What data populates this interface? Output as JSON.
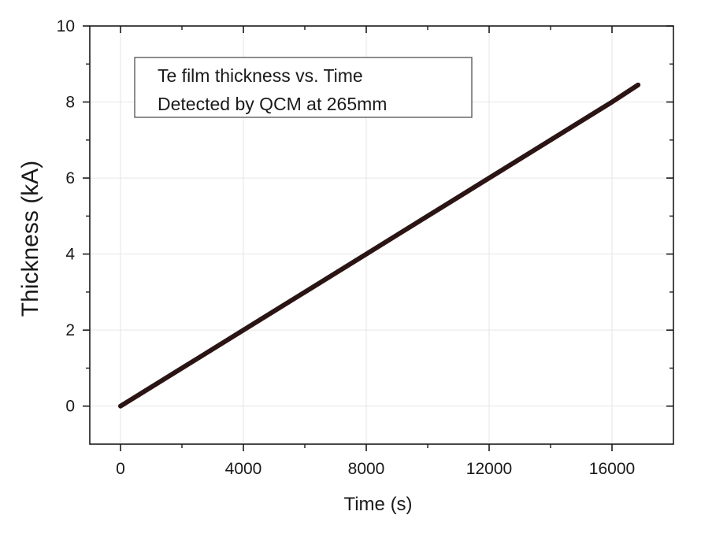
{
  "chart_data": {
    "type": "line",
    "title": "",
    "xlabel": "Time (s)",
    "ylabel": "Thickness (kA)",
    "xlim": [
      -1000,
      18000
    ],
    "ylim": [
      -1,
      10
    ],
    "xticks": [
      0,
      4000,
      8000,
      12000,
      16000
    ],
    "xtick_labels": [
      "0",
      "4000",
      "8000",
      "12000",
      "16000"
    ],
    "xminor": [
      2000,
      6000,
      10000,
      14000
    ],
    "yticks": [
      0,
      2,
      4,
      6,
      8,
      10
    ],
    "ytick_labels": [
      "0",
      "2",
      "4",
      "6",
      "8",
      "10"
    ],
    "yminor": [
      1,
      3,
      5,
      7,
      9
    ],
    "grid": true,
    "legend_position": "top-left",
    "annotation_lines": [
      "Te film thickness vs. Time",
      "Detected by QCM at 265mm"
    ],
    "series": [
      {
        "color": "#2b1414",
        "x": [
          0,
          2000,
          4000,
          6000,
          8000,
          10000,
          12000,
          14000,
          16000,
          16850
        ],
        "y": [
          0,
          1.0,
          2.0,
          3.0,
          4.0,
          5.0,
          6.0,
          7.0,
          8.0,
          8.45
        ]
      }
    ]
  }
}
